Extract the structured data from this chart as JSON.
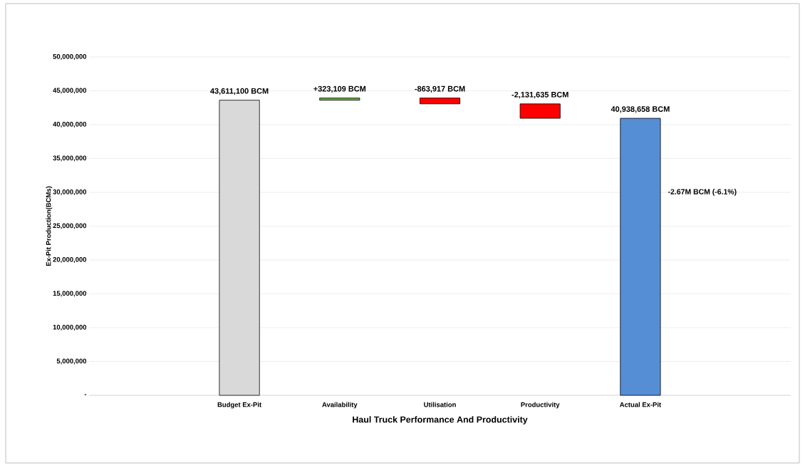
{
  "chart_data": {
    "type": "bar",
    "xlabel": "Haul Truck Performance And Productivity",
    "ylabel": "Ex-Pit Production(BCMs)",
    "categories": [
      null,
      "Budget Ex-Pit",
      "Availability",
      "Utilisation",
      "Productivity",
      "Actual Ex-Pit",
      null
    ],
    "values": [
      null,
      43611100,
      323109,
      -863917,
      -2131635,
      40938658,
      null
    ],
    "base": [
      null,
      0,
      43611100,
      43934209,
      43070292,
      0,
      null
    ],
    "colors": [
      null,
      "#d9d9d9",
      "#70ad47",
      "#ff0000",
      "#ff0000",
      "#558ed5",
      null
    ],
    "value_labels": [
      null,
      "43,611,100 BCM",
      "+323,109 BCM",
      "-863,917 BCM",
      "-2,131,635 BCM",
      "40,938,658 BCM",
      null
    ],
    "annotations": [
      "-2.67M BCM (-6.1%)"
    ],
    "ylim": [
      0,
      50000000
    ],
    "yticks": [
      {
        "value": 0,
        "label": "-"
      },
      {
        "value": 5000000,
        "label": "5,000,000"
      },
      {
        "value": 10000000,
        "label": "10,000,000"
      },
      {
        "value": 15000000,
        "label": "15,000,000"
      },
      {
        "value": 20000000,
        "label": "20,000,000"
      },
      {
        "value": 25000000,
        "label": "25,000,000"
      },
      {
        "value": 30000000,
        "label": "30,000,000"
      },
      {
        "value": 35000000,
        "label": "35,000,000"
      },
      {
        "value": 40000000,
        "label": "40,000,000"
      },
      {
        "value": 45000000,
        "label": "45,000,000"
      },
      {
        "value": 50000000,
        "label": "50,000,000"
      }
    ],
    "grid": "y"
  }
}
